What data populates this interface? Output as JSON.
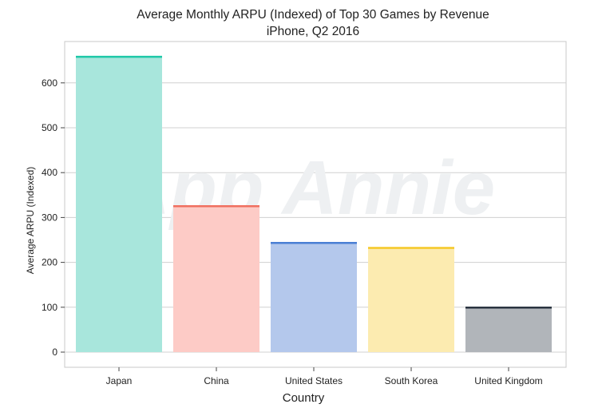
{
  "chart_data": {
    "type": "bar",
    "title_lines": [
      "Average Monthly ARPU (Indexed) of Top 30 Games by Revenue",
      "iPhone, Q2 2016"
    ],
    "xlabel": "Country",
    "ylabel": "Average ARPU (Indexed)",
    "categories": [
      "Japan",
      "China",
      "United States",
      "South Korea",
      "United Kingdom"
    ],
    "values": [
      660,
      327,
      245,
      234,
      101
    ],
    "bar_colors": [
      "#a8e6dc",
      "#fdcbc6",
      "#b4c8ec",
      "#fcebb0",
      "#b1b5ba"
    ],
    "bar_edge_colors": [
      "#1ec8a8",
      "#f07060",
      "#4a7fd4",
      "#f5c826",
      "#2a3340"
    ],
    "yticks": [
      0,
      100,
      200,
      300,
      400,
      500,
      600
    ],
    "ylim": [
      -25,
      700
    ],
    "grid": true,
    "watermark": "App Annie"
  }
}
